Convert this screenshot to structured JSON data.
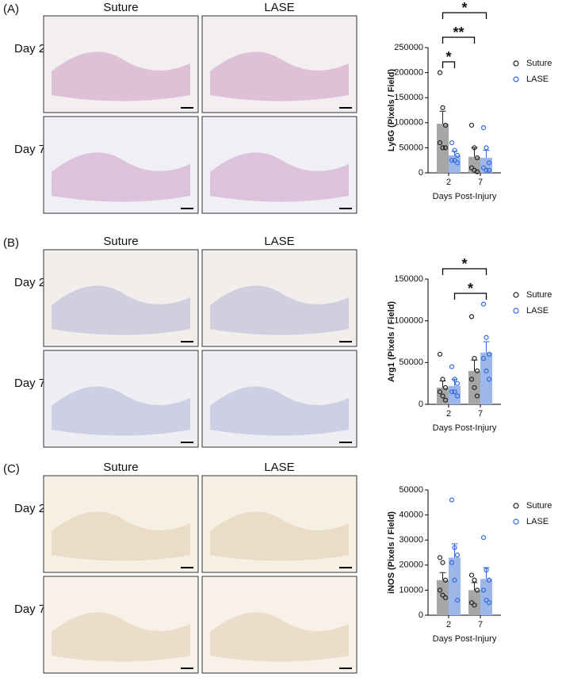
{
  "panels": [
    {
      "label": "(A)",
      "columns": [
        "Suture",
        "LASE"
      ],
      "rows": [
        "Day 2",
        "Day 7"
      ]
    },
    {
      "label": "(B)",
      "columns": [
        "Suture",
        "LASE"
      ],
      "rows": [
        "Day 2",
        "Day 7"
      ]
    },
    {
      "label": "(C)",
      "columns": [
        "Suture",
        "LASE"
      ],
      "rows": [
        "Day 2",
        "Day 7"
      ]
    }
  ],
  "chart_data": [
    {
      "type": "bar",
      "ylabel": "Ly6G (Pixels / Field)",
      "xlabel": "Days Post-Injury",
      "categories": [
        "2",
        "7"
      ],
      "ylim": [
        0,
        250000
      ],
      "yticks": [
        0,
        50000,
        100000,
        150000,
        200000,
        250000
      ],
      "series": [
        {
          "name": "Suture",
          "color": "#a6a6a6",
          "marker_color": "#222222",
          "values": [
            98000,
            32000
          ],
          "errors": [
            25000,
            18000
          ],
          "points": [
            [
              200000,
              130000,
              95000,
              60000,
              50000,
              50000
            ],
            [
              95000,
              50000,
              30000,
              10000,
              5000,
              2000
            ]
          ]
        },
        {
          "name": "LASE",
          "color": "#9db7ea",
          "marker_color": "#2f6be0",
          "values": [
            35000,
            30000
          ],
          "errors": [
            8000,
            15000
          ],
          "points": [
            [
              60000,
              45000,
              35000,
              25000,
              25000,
              20000
            ],
            [
              90000,
              50000,
              20000,
              10000,
              5000,
              5000
            ]
          ]
        }
      ],
      "significance": [
        {
          "label": "*",
          "from": [
            0,
            0
          ],
          "to": [
            1,
            0
          ]
        },
        {
          "label": "**",
          "from": [
            0,
            0
          ],
          "to": [
            0,
            1
          ]
        },
        {
          "label": "*",
          "from": [
            0,
            0
          ],
          "to": [
            1,
            1
          ]
        }
      ]
    },
    {
      "type": "bar",
      "ylabel": "Arg1 (Pixels / Field)",
      "xlabel": "Days Post-Injury",
      "categories": [
        "2",
        "7"
      ],
      "ylim": [
        0,
        150000
      ],
      "yticks": [
        0,
        50000,
        100000,
        150000
      ],
      "series": [
        {
          "name": "Suture",
          "color": "#a6a6a6",
          "marker_color": "#222222",
          "values": [
            20000,
            40000
          ],
          "errors": [
            8000,
            13000
          ],
          "points": [
            [
              60000,
              30000,
              20000,
              15000,
              10000,
              5000
            ],
            [
              105000,
              55000,
              40000,
              30000,
              20000,
              10000
            ]
          ]
        },
        {
          "name": "LASE",
          "color": "#9db7ea",
          "marker_color": "#2f6be0",
          "values": [
            22000,
            62000
          ],
          "errors": [
            8000,
            13000
          ],
          "points": [
            [
              45000,
              30000,
              25000,
              15000,
              15000,
              10000
            ],
            [
              120000,
              80000,
              60000,
              55000,
              40000,
              30000
            ]
          ]
        }
      ],
      "significance": [
        {
          "label": "*",
          "from": [
            1,
            0
          ],
          "to": [
            1,
            1
          ]
        },
        {
          "label": "*",
          "from": [
            0,
            0
          ],
          "to": [
            1,
            1
          ]
        }
      ]
    },
    {
      "type": "bar",
      "ylabel": "iNOS (Pixels / Field)",
      "xlabel": "Days Post-Injury",
      "categories": [
        "2",
        "7"
      ],
      "ylim": [
        0,
        50000
      ],
      "yticks": [
        0,
        10000,
        20000,
        30000,
        40000,
        50000
      ],
      "series": [
        {
          "name": "Suture",
          "color": "#a6a6a6",
          "marker_color": "#222222",
          "values": [
            14000,
            10000
          ],
          "errors": [
            3000,
            3000
          ],
          "points": [
            [
              23000,
              21000,
              14000,
              10000,
              8000,
              7000
            ],
            [
              16000,
              14000,
              10000,
              5000,
              4000
            ]
          ]
        },
        {
          "name": "LASE",
          "color": "#9db7ea",
          "marker_color": "#2f6be0",
          "values": [
            23000,
            14500
          ],
          "errors": [
            5500,
            4500
          ],
          "points": [
            [
              46000,
              27000,
              24000,
              21000,
              14000,
              6000
            ],
            [
              31000,
              18000,
              14000,
              10000,
              6000,
              5000
            ]
          ]
        }
      ],
      "significance": []
    }
  ]
}
